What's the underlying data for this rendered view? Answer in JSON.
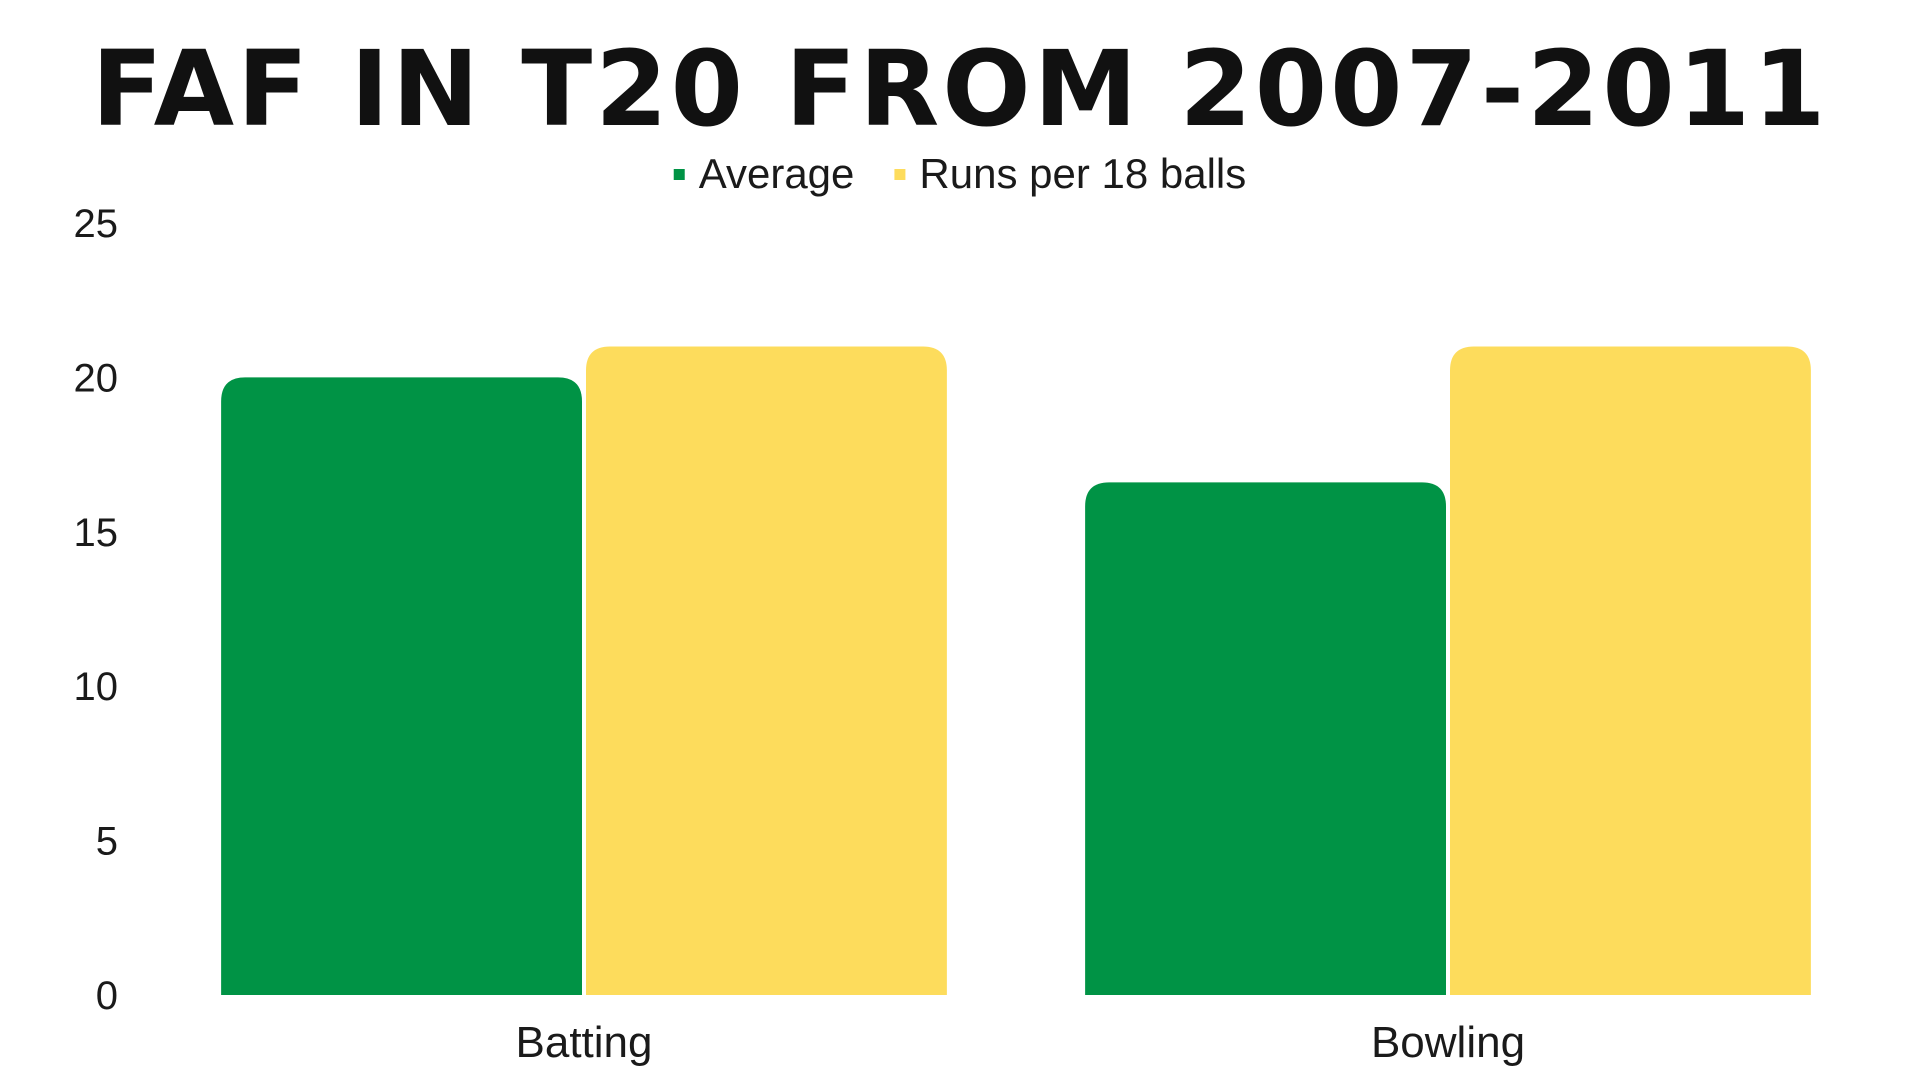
{
  "chart_data": {
    "type": "bar",
    "title": "FAF IN T20 FROM 2007-2011",
    "categories": [
      "Batting",
      "Bowling"
    ],
    "series": [
      {
        "name": "Average",
        "values": [
          20,
          16.6
        ],
        "color": "#009345"
      },
      {
        "name": "Runs per 18 balls",
        "values": [
          21,
          21
        ],
        "color": "#fddc5c"
      }
    ],
    "ylim": [
      0,
      25
    ],
    "yticks": [
      0,
      5,
      10,
      15,
      20,
      25
    ],
    "grid": false,
    "legend_position": "top-center"
  }
}
